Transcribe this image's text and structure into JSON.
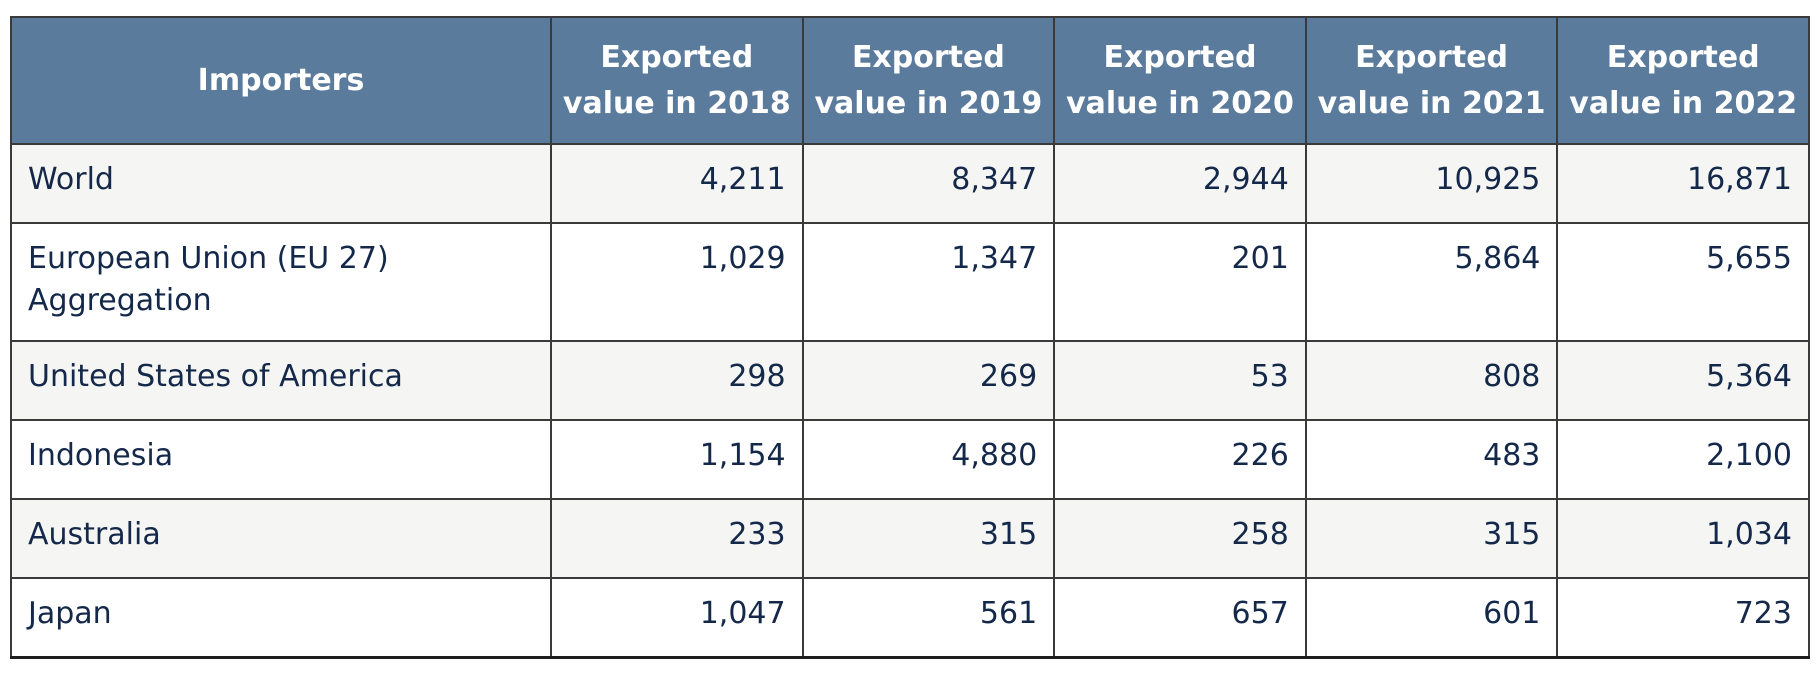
{
  "chart_data": {
    "type": "table",
    "columns": [
      "Importers",
      "Exported value in 2018",
      "Exported value in 2019",
      "Exported value in 2020",
      "Exported value in 2021",
      "Exported value in 2022"
    ],
    "rows": [
      {
        "importer": "World",
        "values": [
          "4,211",
          "8,347",
          "2,944",
          "10,925",
          "16,871"
        ]
      },
      {
        "importer": "European Union (EU 27) Aggregation",
        "values": [
          "1,029",
          "1,347",
          "201",
          "5,864",
          "5,655"
        ]
      },
      {
        "importer": "United States of America",
        "values": [
          "298",
          "269",
          "53",
          "808",
          "5,364"
        ]
      },
      {
        "importer": "Indonesia",
        "values": [
          "1,154",
          "4,880",
          "226",
          "483",
          "2,100"
        ]
      },
      {
        "importer": "Australia",
        "values": [
          "233",
          "315",
          "258",
          "315",
          "1,034"
        ]
      },
      {
        "importer": "Japan",
        "values": [
          "1,047",
          "561",
          "657",
          "601",
          "723"
        ]
      }
    ]
  },
  "colors": {
    "header_background": "#5b7b9d",
    "header_text": "#ffffff",
    "body_text": "#14284a",
    "row_shade": "#f5f5f3",
    "border": "#3a3a3a"
  }
}
